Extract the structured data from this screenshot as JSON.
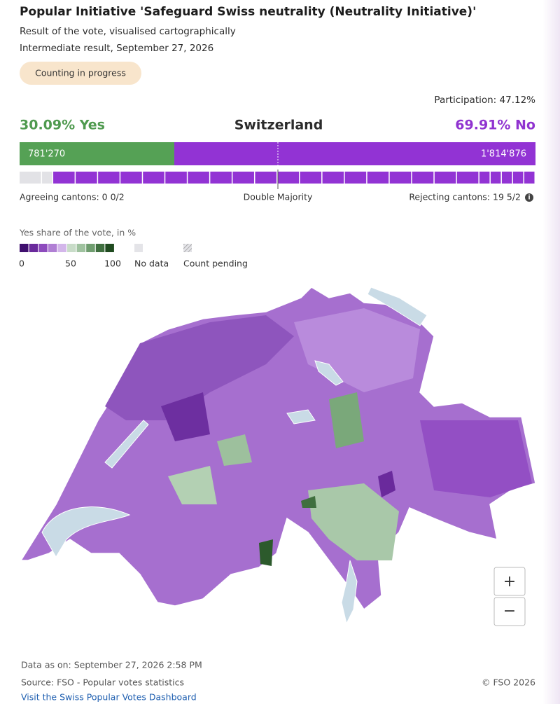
{
  "header": {
    "title": "Popular Initiative 'Safeguard Swiss neutrality (Neutrality Initiative)'",
    "subtitle": "Result of the vote, visualised cartographically",
    "status_line": "Intermediate result, September 27, 2026",
    "badge": "Counting in progress"
  },
  "summary": {
    "participation": "Participation: 47.12%",
    "yes": "30.09% Yes",
    "region": "Switzerland",
    "no": "69.91% No",
    "yes_votes": "781'270",
    "no_votes": "1'814'876",
    "agreeing_cantons": "Agreeing cantons: 0 0/2",
    "double_majority": "Double Majority",
    "rejecting_cantons": "Rejecting cantons: 19 5/2",
    "info_icon": "i"
  },
  "legend": {
    "title": "Yes share of the vote, in %",
    "scale_labels": [
      "0",
      "50",
      "100"
    ],
    "no_data": "No data",
    "count_pending": "Count pending"
  },
  "map_controls": {
    "zoom_in": "+",
    "zoom_out": "−"
  },
  "footer": {
    "data_as_of": "Data as on: September 27, 2026 2:58 PM",
    "source": "Source: FSO - Popular votes statistics",
    "copyright": "© FSO 2026",
    "link": "Visit the Swiss Popular Votes Dashboard"
  }
}
